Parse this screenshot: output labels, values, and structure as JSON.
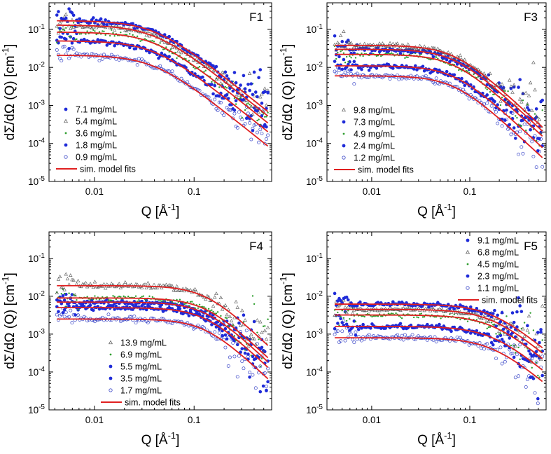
{
  "figure": {
    "xlabel": "Q [Å",
    "xlabel_sup": "-1",
    "xlabel_end": "]",
    "ylabel": "dΣ/dΩ  (Q) [cm",
    "ylabel_sup": "-1",
    "ylabel_end": "]"
  },
  "colors": {
    "red": "#e02020",
    "blue": "#1f2bd8",
    "green": "#2e9e2e",
    "gray": "#555555",
    "blue_open": "#3a46c8"
  },
  "chart_data": [
    {
      "type": "scatter",
      "panel": "F1",
      "title": "F1",
      "xscale": "log",
      "yscale": "log",
      "xlim": [
        0.0035,
        0.6
      ],
      "ylim": [
        1e-05,
        0.5
      ],
      "xticks": [
        0.01,
        0.1
      ],
      "xtick_labels": [
        "0.01",
        "0.1"
      ],
      "yticks": [
        1e-05,
        0.0001,
        0.001,
        0.01,
        0.1
      ],
      "ytick_labels": [
        [
          "10",
          "-5"
        ],
        [
          "10",
          "-4"
        ],
        [
          "10",
          "-3"
        ],
        [
          "10",
          "-2"
        ],
        [
          "10",
          "-1"
        ]
      ],
      "legend_position": "bottom-left",
      "series": [
        {
          "name": "7.1 mg/mL",
          "marker": "filled-circle",
          "color": "#1f2bd8",
          "i0": 0.17,
          "qc": 0.04,
          "slope": 2.1
        },
        {
          "name": "5.4 mg/mL",
          "marker": "open-triangle",
          "color": "#555555",
          "i0": 0.13,
          "qc": 0.04,
          "slope": 2.1
        },
        {
          "name": "3.6 mg/mL",
          "marker": "small-dot",
          "color": "#2e9e2e",
          "i0": 0.085,
          "qc": 0.04,
          "slope": 2.1
        },
        {
          "name": "1.8 mg/mL",
          "marker": "filled-circle",
          "color": "#1f2bd8",
          "i0": 0.05,
          "qc": 0.04,
          "slope": 2.1
        },
        {
          "name": "0.9 mg/mL",
          "marker": "open-circle",
          "color": "#3a46c8",
          "i0": 0.021,
          "qc": 0.04,
          "slope": 2.1
        }
      ],
      "fit_label": "sim. model fits"
    },
    {
      "type": "scatter",
      "panel": "F3",
      "title": "F3",
      "xscale": "log",
      "yscale": "log",
      "xlim": [
        0.0035,
        0.6
      ],
      "ylim": [
        1e-05,
        0.5
      ],
      "xticks": [
        0.01,
        0.1
      ],
      "xtick_labels": [
        "0.01",
        "0.1"
      ],
      "yticks": [
        1e-05,
        0.0001,
        0.001,
        0.01,
        0.1
      ],
      "ytick_labels": [
        [
          "10",
          "-5"
        ],
        [
          "10",
          "-4"
        ],
        [
          "10",
          "-3"
        ],
        [
          "10",
          "-2"
        ],
        [
          "10",
          "-1"
        ]
      ],
      "legend_position": "bottom-left",
      "series": [
        {
          "name": "9.8 mg/mL",
          "marker": "open-triangle",
          "color": "#555555",
          "i0": 0.038,
          "qc": 0.07,
          "slope": 2.4
        },
        {
          "name": "7.3 mg/mL",
          "marker": "filled-circle",
          "color": "#1f2bd8",
          "i0": 0.03,
          "qc": 0.07,
          "slope": 2.4
        },
        {
          "name": "4.9 mg/mL",
          "marker": "small-dot",
          "color": "#2e9e2e",
          "i0": 0.022,
          "qc": 0.07,
          "slope": 2.4
        },
        {
          "name": "2.4 mg/mL",
          "marker": "filled-circle",
          "color": "#1f2bd8",
          "i0": 0.011,
          "qc": 0.07,
          "slope": 2.4
        },
        {
          "name": "1.2 mg/mL",
          "marker": "open-circle",
          "color": "#3a46c8",
          "i0": 0.006,
          "qc": 0.07,
          "slope": 2.4
        }
      ],
      "fit_label": "sim. model fits"
    },
    {
      "type": "scatter",
      "panel": "F4",
      "title": "F4",
      "xscale": "log",
      "yscale": "log",
      "xlim": [
        0.0035,
        0.6
      ],
      "ylim": [
        1e-05,
        0.5
      ],
      "xticks": [
        0.01,
        0.1
      ],
      "xtick_labels": [
        "0.01",
        "0.1"
      ],
      "yticks": [
        1e-05,
        0.0001,
        0.001,
        0.01,
        0.1
      ],
      "ytick_labels": [
        [
          "10",
          "-5"
        ],
        [
          "10",
          "-4"
        ],
        [
          "10",
          "-3"
        ],
        [
          "10",
          "-2"
        ],
        [
          "10",
          "-1"
        ]
      ],
      "legend_position": "bottom-left",
      "series": [
        {
          "name": "13.9 mg/mL",
          "marker": "open-triangle",
          "color": "#555555",
          "i0": 0.019,
          "qc": 0.13,
          "slope": 2.5
        },
        {
          "name": "6.9 mg/mL",
          "marker": "small-dot",
          "color": "#2e9e2e",
          "i0": 0.009,
          "qc": 0.13,
          "slope": 2.5
        },
        {
          "name": "5.5 mg/mL",
          "marker": "filled-circle",
          "color": "#1f2bd8",
          "i0": 0.007,
          "qc": 0.13,
          "slope": 2.5
        },
        {
          "name": "3.5 mg/mL",
          "marker": "filled-circle",
          "color": "#1f2bd8",
          "i0": 0.005,
          "qc": 0.13,
          "slope": 2.5
        },
        {
          "name": "1.7 mg/mL",
          "marker": "open-circle",
          "color": "#3a46c8",
          "i0": 0.0025,
          "qc": 0.13,
          "slope": 2.5
        }
      ],
      "fit_label": "sim. model fits"
    },
    {
      "type": "scatter",
      "panel": "F5",
      "title": "F5",
      "xscale": "log",
      "yscale": "log",
      "xlim": [
        0.0035,
        0.6
      ],
      "ylim": [
        1e-05,
        0.5
      ],
      "xticks": [
        0.01,
        0.1
      ],
      "xtick_labels": [
        "0.01",
        "0.1"
      ],
      "yticks": [
        1e-05,
        0.0001,
        0.001,
        0.01,
        0.1
      ],
      "ytick_labels": [
        [
          "10",
          "-5"
        ],
        [
          "10",
          "-4"
        ],
        [
          "10",
          "-3"
        ],
        [
          "10",
          "-2"
        ],
        [
          "10",
          "-1"
        ]
      ],
      "legend_position": "top-right",
      "series": [
        {
          "name": "9.1 mg/mL",
          "marker": "filled-circle",
          "color": "#1f2bd8",
          "i0": 0.0062,
          "qc": 0.17,
          "slope": 2.2
        },
        {
          "name": "6.8 mg/mL",
          "marker": "open-triangle",
          "color": "#555555",
          "i0": 0.0045,
          "qc": 0.17,
          "slope": 2.2
        },
        {
          "name": "4.5 mg/mL",
          "marker": "small-dot",
          "color": "#2e9e2e",
          "i0": 0.0032,
          "qc": 0.17,
          "slope": 2.2
        },
        {
          "name": "2.3 mg/mL",
          "marker": "filled-circle",
          "color": "#1f2bd8",
          "i0": 0.0016,
          "qc": 0.17,
          "slope": 2.2
        },
        {
          "name": "1.1 mg/mL",
          "marker": "open-circle",
          "color": "#3a46c8",
          "i0": 0.0008,
          "qc": 0.17,
          "slope": 2.2
        }
      ],
      "fit_label": "sim. model fits"
    }
  ]
}
